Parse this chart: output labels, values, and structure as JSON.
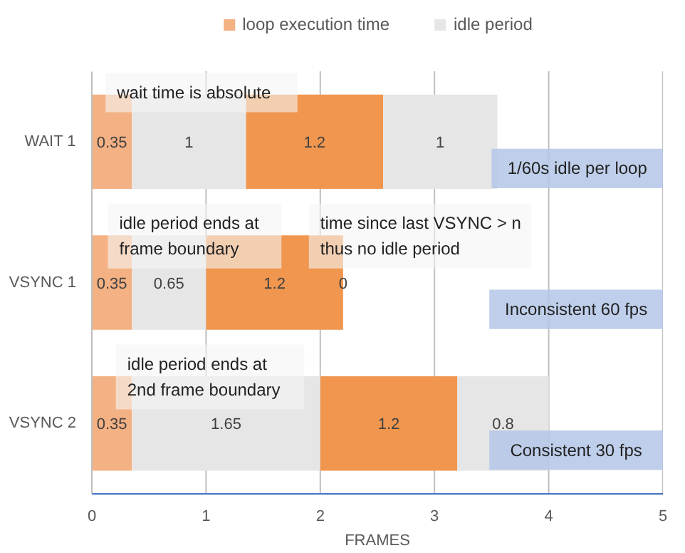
{
  "chart_data": {
    "type": "bar",
    "orientation": "horizontal",
    "stacked": true,
    "xlabel": "FRAMES",
    "categories": [
      "WAIT 1",
      "VSYNC 1",
      "VSYNC 2"
    ],
    "series": [
      {
        "name": "loop execution time",
        "color": "#f4b183",
        "values": [
          0.35,
          0.35,
          0.35
        ]
      },
      {
        "name": "idle period",
        "color": "#e7e6e6",
        "values": [
          1,
          0.65,
          1.65
        ]
      },
      {
        "color": "#f0964f",
        "values": [
          1.2,
          1.2,
          1.2
        ]
      },
      {
        "color": "#e7e6e6",
        "values": [
          1,
          0,
          0.8
        ]
      }
    ],
    "xlim": [
      0,
      5
    ],
    "xticks": [
      0,
      1,
      2,
      3,
      4,
      5
    ],
    "grid": "x",
    "legend": "top",
    "data_labels": true,
    "annotations": [
      "wait time is absolute",
      "1/60s idle per loop",
      "idle period ends at\nframe boundary",
      "time since last VSYNC > n\nthus no idle period",
      "Inconsistent 60 fps",
      "idle period ends at\n2nd frame boundary",
      "Consistent 30 fps"
    ]
  }
}
